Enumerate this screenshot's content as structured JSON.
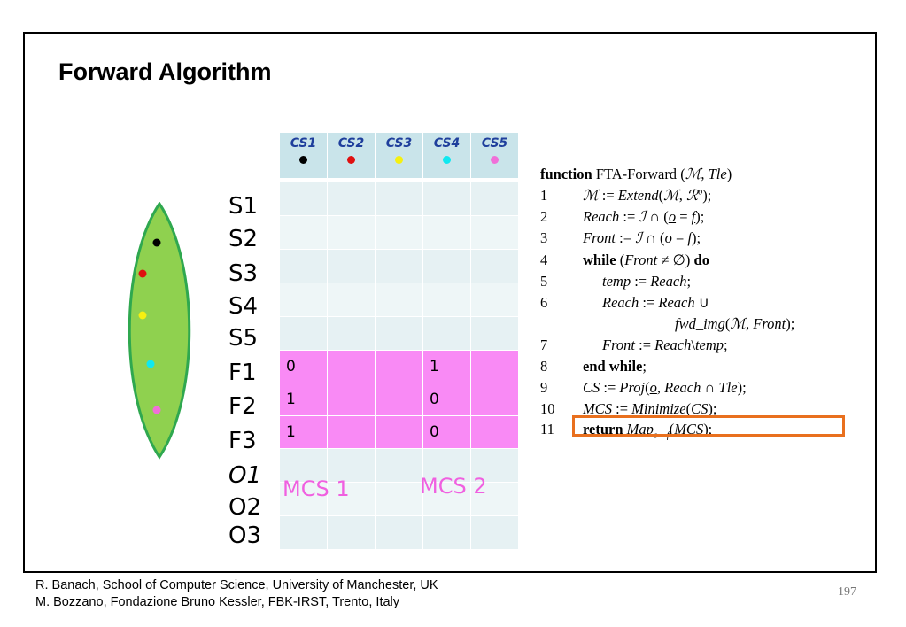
{
  "slide": {
    "title": "Forward Algorithm",
    "page_number": "197"
  },
  "footer": {
    "line1": "R. Banach, School of  Computer Science, University of Manchester, UK",
    "line2": "M. Bozzano, Fondazione Bruno Kessler, FBK-IRST, Trento, Italy"
  },
  "grid": {
    "columns": [
      {
        "label": "CS1",
        "dot_color": "#000000"
      },
      {
        "label": "CS2",
        "dot_color": "#e01010"
      },
      {
        "label": "CS3",
        "dot_color": "#f5f010"
      },
      {
        "label": "CS4",
        "dot_color": "#10e8f0"
      },
      {
        "label": "CS5",
        "dot_color": "#f070d8"
      }
    ],
    "rows": [
      "S1",
      "S2",
      "S3",
      "S4",
      "S5",
      "F1",
      "F2",
      "F3",
      "O1",
      "O2",
      "O3"
    ],
    "failure_values": {
      "F1": [
        "0",
        "",
        "",
        "1",
        ""
      ],
      "F2": [
        "1",
        "",
        "",
        "0",
        ""
      ],
      "F3": [
        "1",
        "",
        "",
        "0",
        ""
      ]
    },
    "mcs_labels": [
      "MCS 1",
      "MCS 2"
    ]
  },
  "leaf": {
    "fill": "#8fd14f",
    "stroke": "#2fa84f",
    "dots": [
      "#000000",
      "#e01010",
      "#f5f010",
      "#10e8f0",
      "#f070d8"
    ]
  },
  "algorithm": {
    "header_keyword": "function",
    "header_name": "FTA-Forward",
    "line_numbers": [
      "1",
      "2",
      "3",
      "4",
      "5",
      "6",
      "7",
      "8",
      "9",
      "10",
      "11"
    ],
    "highlight_color": "#e9701e"
  }
}
